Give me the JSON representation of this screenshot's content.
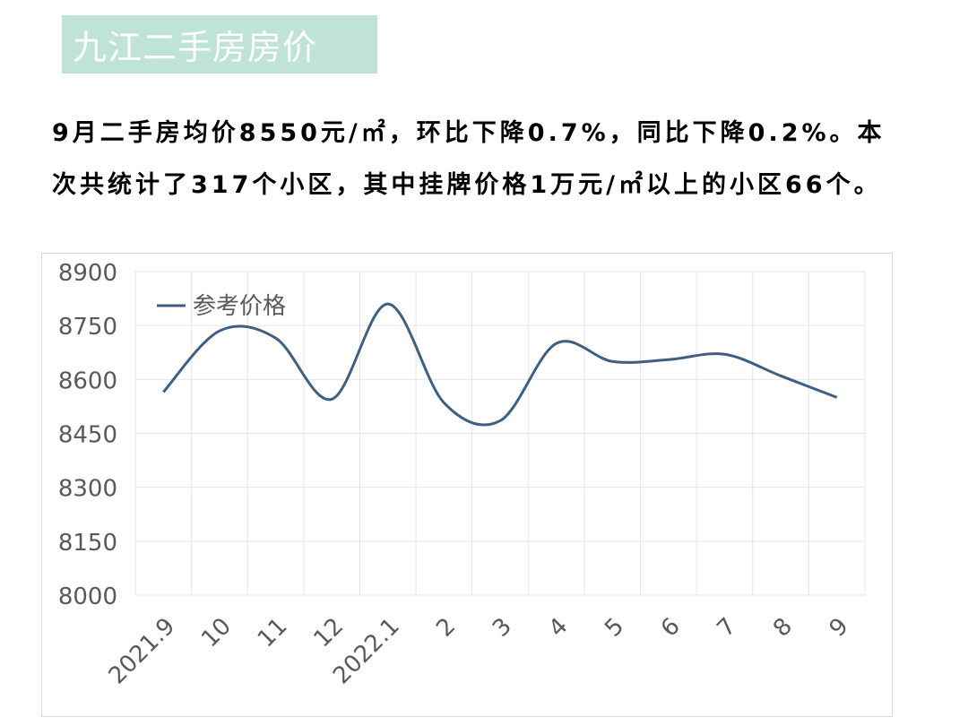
{
  "title": "九江二手房房价",
  "summary": "9月二手房均价8550元/㎡，环比下降0.7%，同比下降0.2%。本次共统计了317个小区，其中挂牌价格1万元/㎡以上的小区66个。",
  "colors": {
    "title_bg": "#bfe3d8",
    "series_line": "#3f5f80",
    "grid": "#e6e6e6",
    "axis_text": "#595959"
  },
  "chart_data": {
    "type": "line",
    "title": "",
    "xlabel": "",
    "ylabel": "",
    "categories": [
      "2021.9",
      "10",
      "11",
      "12",
      "2022.1",
      "2",
      "3",
      "4",
      "5",
      "6",
      "7",
      "8",
      "9"
    ],
    "series": [
      {
        "name": "参考价格",
        "values": [
          8565,
          8735,
          8715,
          8545,
          8810,
          8535,
          8485,
          8700,
          8650,
          8655,
          8670,
          8610,
          8550
        ]
      }
    ],
    "ylim": [
      8000,
      8900
    ],
    "yticks": [
      8000,
      8150,
      8300,
      8450,
      8600,
      8750,
      8900
    ],
    "smooth": true,
    "grid": true,
    "legend_position": "top-left"
  }
}
